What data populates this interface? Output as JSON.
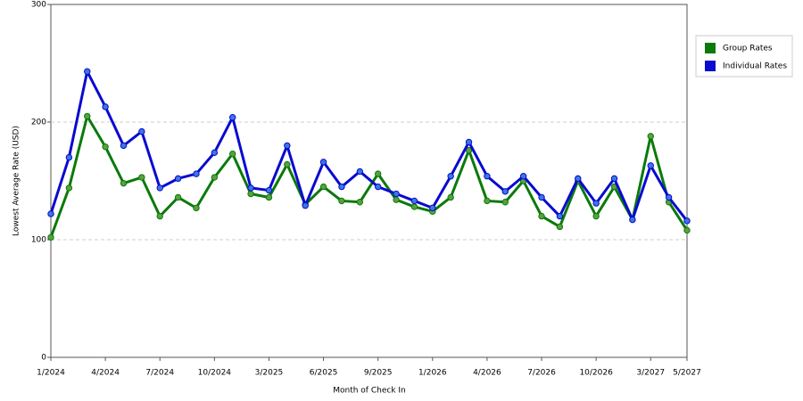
{
  "chart_data": {
    "type": "line",
    "x_label": "Month of Check In",
    "y_label": "Lowest Average Rate (USD)",
    "categories": [
      "1/2024",
      null,
      null,
      "4/2024",
      null,
      null,
      "7/2024",
      null,
      null,
      "10/2024",
      null,
      null,
      "3/2025",
      null,
      null,
      "6/2025",
      null,
      null,
      "9/2025",
      null,
      null,
      "1/2026",
      null,
      null,
      "4/2026",
      null,
      null,
      "7/2026",
      null,
      null,
      "10/2026",
      null,
      null,
      "3/2027",
      null,
      "5/2027"
    ],
    "series": [
      {
        "name": "Group Rates",
        "color": "#0a7a0a",
        "marker_color": "#5aa040",
        "values": [
          102,
          144,
          205,
          179,
          148,
          153,
          120,
          136,
          127,
          153,
          173,
          139,
          136,
          164,
          130,
          145,
          133,
          132,
          156,
          134,
          128,
          124,
          136,
          176,
          133,
          132,
          150,
          120,
          111,
          150,
          120,
          145,
          117,
          188,
          132,
          108
        ]
      },
      {
        "name": "Individual Rates",
        "color": "#0a0ad0",
        "marker_color": "#3a78e0",
        "values": [
          122,
          170,
          243,
          213,
          180,
          192,
          144,
          152,
          156,
          174,
          204,
          144,
          142,
          180,
          129,
          166,
          145,
          158,
          145,
          139,
          133,
          127,
          154,
          183,
          154,
          141,
          154,
          136,
          120,
          152,
          131,
          152,
          117,
          163,
          136,
          116
        ]
      }
    ],
    "ylim": [
      0,
      300
    ],
    "yticks": [
      0,
      100,
      200,
      300
    ],
    "grid": true,
    "legend": "right"
  }
}
